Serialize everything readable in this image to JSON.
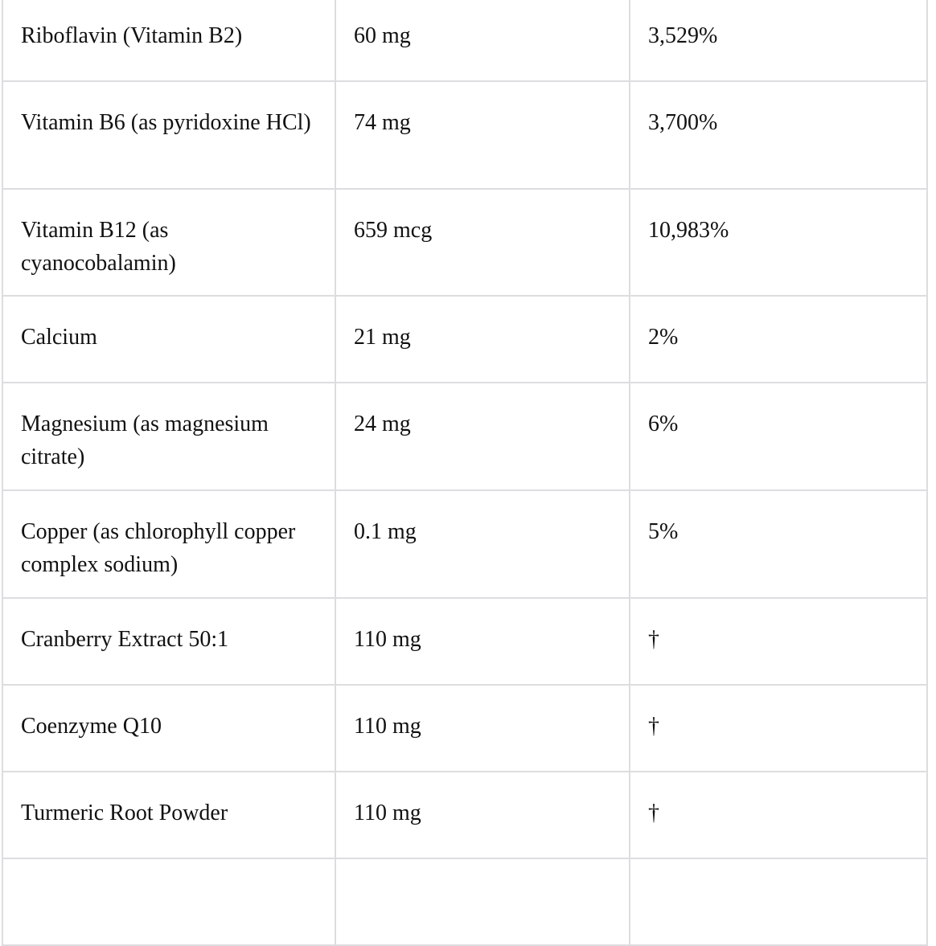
{
  "table": {
    "rows": [
      {
        "name": "Riboflavin (Vitamin B2)",
        "amount": "60 mg",
        "dv": "3,529%"
      },
      {
        "name": "Vitamin B6 (as pyridoxine HCl)",
        "amount": "74 mg",
        "dv": "3,700%"
      },
      {
        "name": "Vitamin B12 (as cyanocobalamin)",
        "amount": "659 mcg",
        "dv": "10,983%"
      },
      {
        "name": "Calcium",
        "amount": "21 mg",
        "dv": "2%"
      },
      {
        "name": "Magnesium (as magnesium citrate)",
        "amount": "24 mg",
        "dv": "6%"
      },
      {
        "name": "Copper (as chlorophyll copper complex sodium)",
        "amount": "0.1 mg",
        "dv": "5%"
      },
      {
        "name": "Cranberry Extract 50:1",
        "amount": "110 mg",
        "dv": "†"
      },
      {
        "name": "Coenzyme Q10",
        "amount": "110 mg",
        "dv": "†"
      },
      {
        "name": "Turmeric Root Powder",
        "amount": "110 mg",
        "dv": "†"
      }
    ]
  }
}
